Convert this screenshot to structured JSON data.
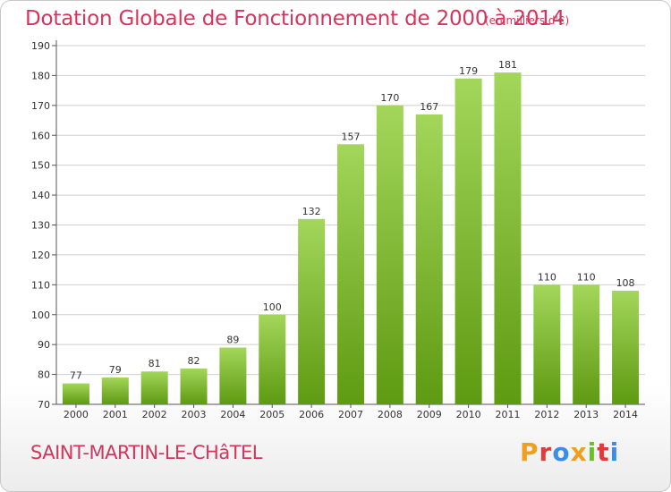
{
  "header": {
    "title": "Dotation Globale de Fonctionnement de 2000 à 2014",
    "units": "(en milliers d'€)"
  },
  "footer": {
    "commune": "SAINT-MARTIN-LE-CHâTEL",
    "logo": "Proxiti"
  },
  "colors": {
    "bar_top": "#a3d65a",
    "bar_bottom": "#5e9a12",
    "title": "#d2365c",
    "grid": "#cfcfcf"
  },
  "chart_data": {
    "type": "bar",
    "title": "Dotation Globale de Fonctionnement de 2000 à 2014",
    "subtitle": "(en milliers d'€)",
    "categories": [
      "2000",
      "2001",
      "2002",
      "2003",
      "2004",
      "2005",
      "2006",
      "2007",
      "2008",
      "2009",
      "2010",
      "2011",
      "2012",
      "2013",
      "2014"
    ],
    "values": [
      77,
      79,
      81,
      82,
      89,
      100,
      132,
      157,
      170,
      167,
      179,
      181,
      110,
      110,
      108
    ],
    "ylim": [
      70,
      190
    ],
    "yticks": [
      70,
      80,
      90,
      100,
      110,
      120,
      130,
      140,
      150,
      160,
      170,
      180,
      190
    ],
    "grid": true,
    "legend": "none"
  }
}
